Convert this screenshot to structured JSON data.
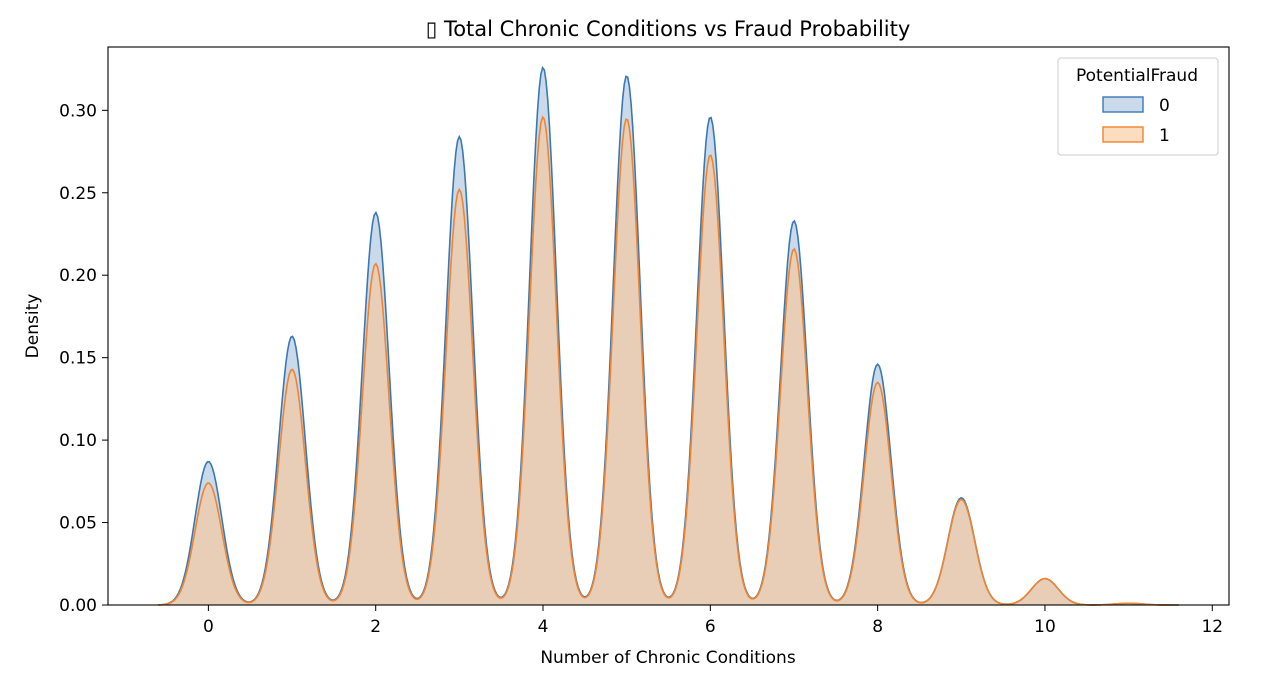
{
  "chart_data": {
    "type": "area",
    "title": "▯ Total Chronic Conditions vs Fraud Probability",
    "xlabel": "Number of Chronic Conditions",
    "ylabel": "Density",
    "xlim": [
      -1.2,
      12.2
    ],
    "ylim": [
      0,
      0.3384
    ],
    "xticks": [
      0,
      2,
      4,
      6,
      8,
      10,
      12
    ],
    "xtick_labels": [
      "0",
      "2",
      "4",
      "6",
      "8",
      "10",
      "12"
    ],
    "yticks": [
      0.0,
      0.05,
      0.1,
      0.15,
      0.2,
      0.25,
      0.3
    ],
    "ytick_labels": [
      "0.00",
      "0.05",
      "0.10",
      "0.15",
      "0.20",
      "0.25",
      "0.30"
    ],
    "grid": false,
    "legend": {
      "title": "PotentialFraud",
      "placement": "top-right"
    },
    "kde_bandwidth": 0.16,
    "x": [
      0,
      1,
      2,
      3,
      4,
      5,
      6,
      7,
      8,
      9,
      10,
      11
    ],
    "series": [
      {
        "name": "0",
        "color": "#3a78b4",
        "fill": "#a6c2dd",
        "values": [
          0.087,
          0.163,
          0.238,
          0.284,
          0.326,
          0.321,
          0.296,
          0.233,
          0.146,
          0.065,
          0.016,
          0.001
        ],
        "range": [
          -0.6,
          11.6
        ]
      },
      {
        "name": "1",
        "color": "#f08430",
        "fill": "#fbc795",
        "values": [
          0.074,
          0.143,
          0.207,
          0.252,
          0.296,
          0.295,
          0.273,
          0.216,
          0.135,
          0.064,
          0.016,
          0.001
        ],
        "range": [
          -0.6,
          11.6
        ]
      }
    ]
  }
}
